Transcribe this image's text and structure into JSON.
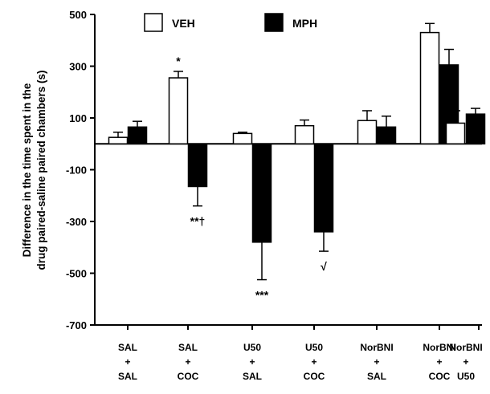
{
  "chart_data": {
    "type": "bar",
    "ylabel": "Difference in the time spent in the drug paired-saline paired chambers (s)",
    "ylabel_lines": [
      "Difference in the time spent in the",
      "drug paired-saline paired chambers (s)"
    ],
    "ylim": [
      -700,
      500
    ],
    "yticks": [
      500,
      300,
      100,
      -100,
      -300,
      -500,
      -700
    ],
    "categories": [
      [
        "SAL",
        "+",
        "SAL"
      ],
      [
        "SAL",
        "+",
        "COC"
      ],
      [
        "U50",
        "+",
        "SAL"
      ],
      [
        "U50",
        "+",
        "COC"
      ],
      [
        "NorBNI",
        "+",
        "SAL"
      ],
      [
        "NorBNI",
        "+",
        "COC"
      ],
      [
        "NorBNI",
        "+",
        "U50"
      ]
    ],
    "series": [
      {
        "name": "VEH",
        "color": "#ffffff",
        "values": [
          25,
          255,
          40,
          70,
          90,
          430,
          80
        ],
        "errors": [
          20,
          25,
          5,
          22,
          38,
          35,
          48
        ]
      },
      {
        "name": "MPH",
        "color": "#000000",
        "values": [
          65,
          -165,
          -380,
          -340,
          65,
          305,
          115
        ],
        "errors": [
          22,
          75,
          145,
          75,
          42,
          60,
          22
        ]
      }
    ],
    "annotations": [
      {
        "category": 1,
        "series": 0,
        "text": "*"
      },
      {
        "category": 1,
        "series": 1,
        "text": "**†"
      },
      {
        "category": 2,
        "series": 1,
        "text": "***"
      },
      {
        "category": 3,
        "series": 1,
        "text": "√"
      }
    ],
    "legend_position": "top"
  }
}
